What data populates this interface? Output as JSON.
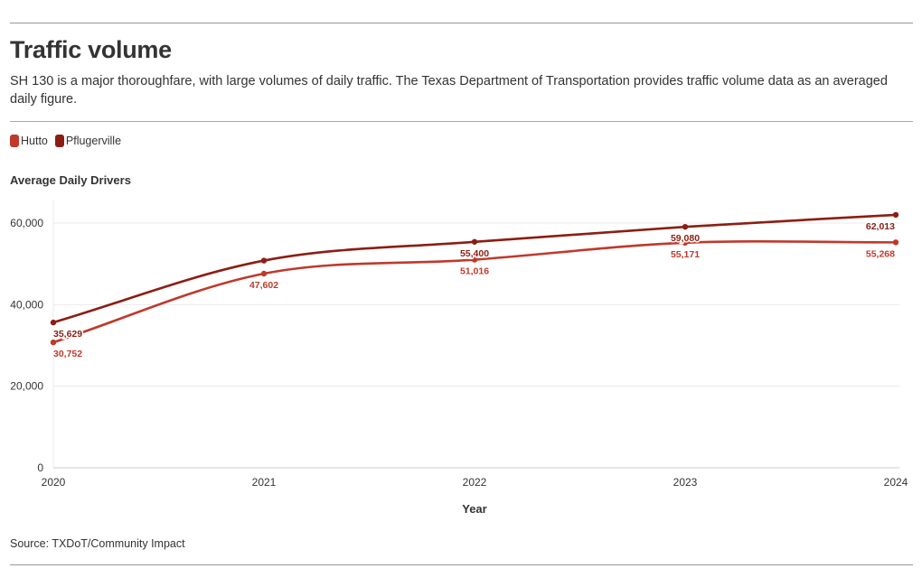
{
  "header": {
    "title": "Traffic volume",
    "subtitle": "SH 130 is a major thoroughfare, with large volumes of daily traffic. The Texas Department of Transportation provides traffic volume data as an averaged daily figure."
  },
  "footer": {
    "source": "Source: TXDoT/Community Impact"
  },
  "chart_data": {
    "type": "line",
    "title": "Traffic volume",
    "ylabel": "Average Daily Drivers",
    "xlabel": "Year",
    "x": [
      "2020",
      "2021",
      "2022",
      "2023",
      "2024"
    ],
    "ylim": [
      0,
      60000
    ],
    "yticks": [
      0,
      20000,
      40000,
      60000
    ],
    "ytick_labels": [
      "0",
      "20,000",
      "40,000",
      "60,000"
    ],
    "grid": true,
    "legend_position": "top-left",
    "series": [
      {
        "name": "Hutto",
        "color": "#c0392b",
        "values": [
          30752,
          47602,
          51016,
          55171,
          55268
        ],
        "labels": [
          "30,752",
          "47,602",
          "51,016",
          "55,171",
          "55,268"
        ]
      },
      {
        "name": "Pflugerville",
        "color": "#8b1e14",
        "values": [
          35629,
          50800,
          55400,
          59080,
          62013
        ],
        "labels": [
          "35,629",
          "",
          "55,400",
          "59,080",
          "62,013"
        ]
      }
    ]
  }
}
